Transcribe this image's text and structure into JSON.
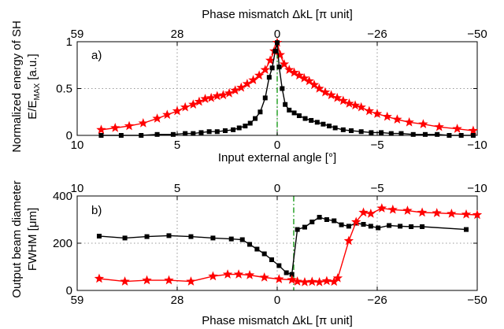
{
  "chart_data": [
    {
      "type": "line",
      "panel_label": "a)",
      "x_bottom_label": "Input external angle [°]",
      "x_top_label": "Phase mismatch  ΔkL  [π unit]",
      "ylabel_line1": "Normalized energy of SH",
      "ylabel_line2": "E/E",
      "ylabel_sub": "MAX",
      "ylabel_unit": " [a.u.]",
      "xlim": [
        10,
        -10
      ],
      "ylim": [
        0,
        1
      ],
      "x_ticks": [
        "10",
        "5",
        "0",
        "-5",
        "-10"
      ],
      "x_top_ticks": [
        "59",
        "28",
        "0",
        "-26",
        "-50"
      ],
      "y_ticks": [
        "0",
        "0.5",
        "1"
      ],
      "grid": true,
      "reference_line": {
        "x": 0,
        "style": "dash-dot",
        "color": "#1a9c1a"
      },
      "series": [
        {
          "color": "#ff0000",
          "marker": "star",
          "points": [
            [
              8.8,
              0.06
            ],
            [
              8.1,
              0.08
            ],
            [
              7.4,
              0.1
            ],
            [
              6.7,
              0.13
            ],
            [
              6.0,
              0.18
            ],
            [
              5.5,
              0.22
            ],
            [
              5.0,
              0.26
            ],
            [
              4.6,
              0.3
            ],
            [
              4.2,
              0.33
            ],
            [
              3.9,
              0.36
            ],
            [
              3.6,
              0.39
            ],
            [
              3.3,
              0.4
            ],
            [
              3.0,
              0.42
            ],
            [
              2.7,
              0.43
            ],
            [
              2.4,
              0.45
            ],
            [
              2.1,
              0.48
            ],
            [
              1.8,
              0.51
            ],
            [
              1.5,
              0.55
            ],
            [
              1.2,
              0.59
            ],
            [
              0.9,
              0.64
            ],
            [
              0.6,
              0.7
            ],
            [
              0.35,
              0.8
            ],
            [
              0.15,
              0.9
            ],
            [
              0.0,
              0.99
            ],
            [
              -0.15,
              0.86
            ],
            [
              -0.35,
              0.76
            ],
            [
              -0.6,
              0.7
            ],
            [
              -0.85,
              0.67
            ],
            [
              -1.1,
              0.64
            ],
            [
              -1.35,
              0.61
            ],
            [
              -1.6,
              0.58
            ],
            [
              -1.85,
              0.54
            ],
            [
              -2.1,
              0.5
            ],
            [
              -2.4,
              0.46
            ],
            [
              -2.7,
              0.43
            ],
            [
              -3.0,
              0.4
            ],
            [
              -3.3,
              0.37
            ],
            [
              -3.6,
              0.34
            ],
            [
              -3.9,
              0.32
            ],
            [
              -4.2,
              0.3
            ],
            [
              -4.6,
              0.26
            ],
            [
              -5.0,
              0.23
            ],
            [
              -5.5,
              0.2
            ],
            [
              -6.0,
              0.17
            ],
            [
              -6.6,
              0.14
            ],
            [
              -7.3,
              0.12
            ],
            [
              -8.1,
              0.09
            ],
            [
              -9.0,
              0.07
            ],
            [
              -9.8,
              0.05
            ]
          ]
        },
        {
          "color": "#000000",
          "marker": "square",
          "points": [
            [
              8.8,
              0.0
            ],
            [
              7.8,
              0.0
            ],
            [
              6.8,
              0.0
            ],
            [
              6.0,
              0.01
            ],
            [
              5.2,
              0.01
            ],
            [
              4.6,
              0.02
            ],
            [
              4.2,
              0.02
            ],
            [
              3.8,
              0.03
            ],
            [
              3.4,
              0.04
            ],
            [
              3.0,
              0.04
            ],
            [
              2.6,
              0.05
            ],
            [
              2.2,
              0.06
            ],
            [
              1.9,
              0.08
            ],
            [
              1.6,
              0.1
            ],
            [
              1.35,
              0.13
            ],
            [
              1.1,
              0.18
            ],
            [
              0.85,
              0.25
            ],
            [
              0.6,
              0.4
            ],
            [
              0.4,
              0.62
            ],
            [
              0.25,
              0.72
            ],
            [
              0.1,
              0.9
            ],
            [
              0.0,
              0.99
            ],
            [
              -0.1,
              0.73
            ],
            [
              -0.25,
              0.5
            ],
            [
              -0.4,
              0.33
            ],
            [
              -0.6,
              0.27
            ],
            [
              -0.85,
              0.24
            ],
            [
              -1.1,
              0.21
            ],
            [
              -1.4,
              0.18
            ],
            [
              -1.7,
              0.16
            ],
            [
              -2.0,
              0.14
            ],
            [
              -2.3,
              0.12
            ],
            [
              -2.6,
              0.1
            ],
            [
              -2.9,
              0.08
            ],
            [
              -3.3,
              0.06
            ],
            [
              -3.7,
              0.05
            ],
            [
              -4.2,
              0.04
            ],
            [
              -4.7,
              0.03
            ],
            [
              -5.2,
              0.03
            ],
            [
              -5.7,
              0.02
            ],
            [
              -6.2,
              0.02
            ],
            [
              -6.8,
              0.01
            ],
            [
              -7.4,
              0.01
            ],
            [
              -8.0,
              0.01
            ],
            [
              -8.6,
              0.0
            ],
            [
              -9.2,
              0.0
            ],
            [
              -9.8,
              0.0
            ]
          ]
        }
      ]
    },
    {
      "type": "line",
      "panel_label": "b)",
      "x_top_label": "",
      "x_bottom_label": "Phase mismatch  ΔkL  [π unit]",
      "ylabel_line1": "Output beam diameter",
      "ylabel_line2": "FWHM [μm]",
      "xlim": [
        59,
        -50
      ],
      "ylim": [
        0,
        400
      ],
      "x_ticks": [
        "59",
        "28",
        "0",
        "-26",
        "-50"
      ],
      "x_top_ticks": [
        "10",
        "5",
        "0",
        "-5",
        "-10"
      ],
      "y_ticks": [
        "0",
        "200",
        "400"
      ],
      "grid": true,
      "reference_line": {
        "x": 0,
        "style": "dash-dot",
        "color": "#1a9c1a"
      },
      "series": [
        {
          "color": "#000000",
          "marker": "square",
          "points": [
            [
              53,
              230
            ],
            [
              46,
              222
            ],
            [
              40,
              228
            ],
            [
              34,
              232
            ],
            [
              28,
              228
            ],
            [
              22,
              222
            ],
            [
              17,
              218
            ],
            [
              14,
              215
            ],
            [
              12,
              195
            ],
            [
              10,
              175
            ],
            [
              8,
              155
            ],
            [
              6,
              130
            ],
            [
              4,
              105
            ],
            [
              2,
              75
            ],
            [
              0.5,
              68
            ],
            [
              -1,
              258
            ],
            [
              -3,
              268
            ],
            [
              -5,
              290
            ],
            [
              -7,
              310
            ],
            [
              -9,
              300
            ],
            [
              -11,
              295
            ],
            [
              -13,
              278
            ],
            [
              -15,
              272
            ],
            [
              -17,
              285
            ],
            [
              -19,
              280
            ],
            [
              -21,
              272
            ],
            [
              -23,
              265
            ],
            [
              -26,
              275
            ],
            [
              -29,
              272
            ],
            [
              -32,
              270
            ],
            [
              -35,
              270
            ],
            [
              -47,
              258
            ]
          ]
        },
        {
          "color": "#ff0000",
          "marker": "star",
          "points": [
            [
              53,
              50
            ],
            [
              46,
              38
            ],
            [
              40,
              43
            ],
            [
              34,
              43
            ],
            [
              28,
              38
            ],
            [
              22,
              60
            ],
            [
              18,
              68
            ],
            [
              15,
              68
            ],
            [
              12,
              65
            ],
            [
              8,
              55
            ],
            [
              4,
              48
            ],
            [
              0.5,
              45
            ],
            [
              -1,
              38
            ],
            [
              -3,
              35
            ],
            [
              -5,
              37
            ],
            [
              -7,
              35
            ],
            [
              -9,
              40
            ],
            [
              -11,
              37
            ],
            [
              -12,
              52
            ],
            [
              -15,
              210
            ],
            [
              -17,
              290
            ],
            [
              -19,
              330
            ],
            [
              -21,
              325
            ],
            [
              -24,
              348
            ],
            [
              -27,
              342
            ],
            [
              -31,
              338
            ],
            [
              -35,
              330
            ],
            [
              -39,
              328
            ],
            [
              -43,
              325
            ],
            [
              -47,
              322
            ],
            [
              -50,
              320
            ]
          ]
        }
      ]
    }
  ]
}
